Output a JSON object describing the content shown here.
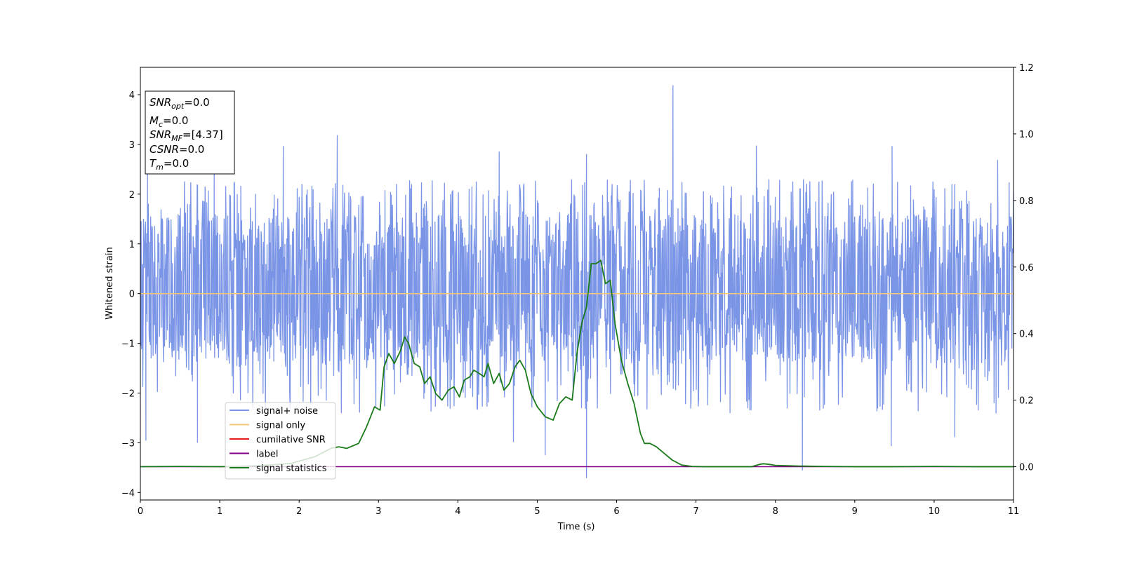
{
  "chart_data": {
    "type": "line",
    "xlabel": "Time (s)",
    "ylabel": "Whitened strain",
    "xlim": [
      0,
      11
    ],
    "ylim": [
      -4.15,
      4.55
    ],
    "y2lim": [
      -0.1,
      1.2
    ],
    "x_ticks": [
      "0",
      "1",
      "2",
      "3",
      "4",
      "5",
      "6",
      "7",
      "8",
      "9",
      "10",
      "11"
    ],
    "y_ticks": [
      "4",
      "3",
      "2",
      "1",
      "0",
      "−1",
      "−2",
      "−3",
      "−4"
    ],
    "y2_ticks": [
      "1.2",
      "1.0",
      "0.8",
      "0.6",
      "0.4",
      "0.2",
      "0.0"
    ],
    "grid": false,
    "legend_position": "lower-left",
    "annotation": {
      "snr_opt": {
        "base": "SNR",
        "sub": "opt",
        "value": "=0.0"
      },
      "mc": {
        "base": "M",
        "sub": "c",
        "value": "=0.0"
      },
      "snr_mf": {
        "base": "SNR",
        "sub": "MF",
        "value": "=[4.37]"
      },
      "csnr": {
        "base": "CSNR",
        "value": "=0.0"
      },
      "tm": {
        "base": "T",
        "sub": "m",
        "value": "=0.0"
      }
    },
    "series": [
      {
        "name": "signal+ noise",
        "color": "#7a94e6",
        "axis": "left",
        "envelope": {
          "typical_low": -1.4,
          "typical_high": 1.6,
          "spike_low": -2.4,
          "spike_high": 2.3,
          "points": 2200
        },
        "peaks": [
          [
            0.09,
            2.4
          ],
          [
            0.93,
            2.45
          ],
          [
            1.8,
            2.96
          ],
          [
            2.48,
            3.18
          ],
          [
            4.52,
            2.85
          ],
          [
            5.62,
            2.8
          ],
          [
            6.71,
            4.18
          ],
          [
            7.76,
            2.97
          ],
          [
            9.47,
            2.96
          ],
          [
            10.8,
            2.68
          ]
        ],
        "troughs": [
          [
            0.07,
            -2.95
          ],
          [
            0.72,
            -2.99
          ],
          [
            4.7,
            -2.98
          ],
          [
            5.1,
            -3.24
          ],
          [
            5.62,
            -3.7
          ],
          [
            8.34,
            -3.55
          ],
          [
            9.46,
            -3.06
          ],
          [
            10.26,
            -2.88
          ],
          [
            10.78,
            -2.4
          ]
        ]
      },
      {
        "name": "signal only",
        "color": "#f5c77e",
        "axis": "left",
        "x": [
          0,
          11
        ],
        "y": [
          0,
          0
        ]
      },
      {
        "name": "cumilative SNR",
        "color": "#e41a1c",
        "axis": "right",
        "x": [],
        "y": []
      },
      {
        "name": "label",
        "color": "#800080",
        "axis": "right",
        "x": [
          0,
          11
        ],
        "y": [
          0,
          0
        ]
      },
      {
        "name": "signal statistics",
        "color": "#1a7a1a",
        "axis": "right",
        "x": [
          0,
          0.5,
          1.0,
          1.5,
          1.9,
          2.2,
          2.4,
          2.5,
          2.6,
          2.75,
          2.85,
          2.95,
          3.02,
          3.07,
          3.13,
          3.2,
          3.28,
          3.33,
          3.38,
          3.45,
          3.52,
          3.58,
          3.65,
          3.72,
          3.8,
          3.88,
          3.95,
          4.02,
          4.08,
          4.15,
          4.2,
          4.27,
          4.33,
          4.38,
          4.45,
          4.52,
          4.58,
          4.65,
          4.72,
          4.78,
          4.85,
          4.92,
          5.0,
          5.1,
          5.2,
          5.28,
          5.36,
          5.44,
          5.5,
          5.56,
          5.62,
          5.68,
          5.74,
          5.8,
          5.86,
          5.92,
          5.98,
          6.06,
          6.14,
          6.22,
          6.3,
          6.35,
          6.42,
          6.5,
          6.6,
          6.7,
          6.82,
          6.95,
          7.1,
          7.3,
          7.5,
          7.7,
          7.8,
          7.85,
          7.92,
          8.0,
          8.3,
          8.6,
          9.0,
          9.5,
          10.0,
          10.5,
          11.0
        ],
        "y": [
          0.0,
          0.001,
          0.0,
          0.003,
          0.01,
          0.03,
          0.055,
          0.06,
          0.055,
          0.07,
          0.12,
          0.18,
          0.17,
          0.3,
          0.34,
          0.31,
          0.35,
          0.39,
          0.37,
          0.31,
          0.3,
          0.25,
          0.27,
          0.22,
          0.2,
          0.23,
          0.24,
          0.21,
          0.26,
          0.27,
          0.29,
          0.28,
          0.27,
          0.31,
          0.25,
          0.28,
          0.23,
          0.25,
          0.3,
          0.32,
          0.29,
          0.22,
          0.18,
          0.15,
          0.14,
          0.19,
          0.21,
          0.2,
          0.34,
          0.43,
          0.48,
          0.61,
          0.61,
          0.62,
          0.55,
          0.56,
          0.43,
          0.32,
          0.25,
          0.19,
          0.1,
          0.07,
          0.07,
          0.06,
          0.04,
          0.02,
          0.005,
          0.001,
          0.0,
          0.0,
          0.0,
          0.0,
          0.007,
          0.009,
          0.007,
          0.004,
          0.002,
          0.001,
          0.0,
          0.0,
          0.001,
          0.0,
          0.0
        ]
      }
    ]
  }
}
